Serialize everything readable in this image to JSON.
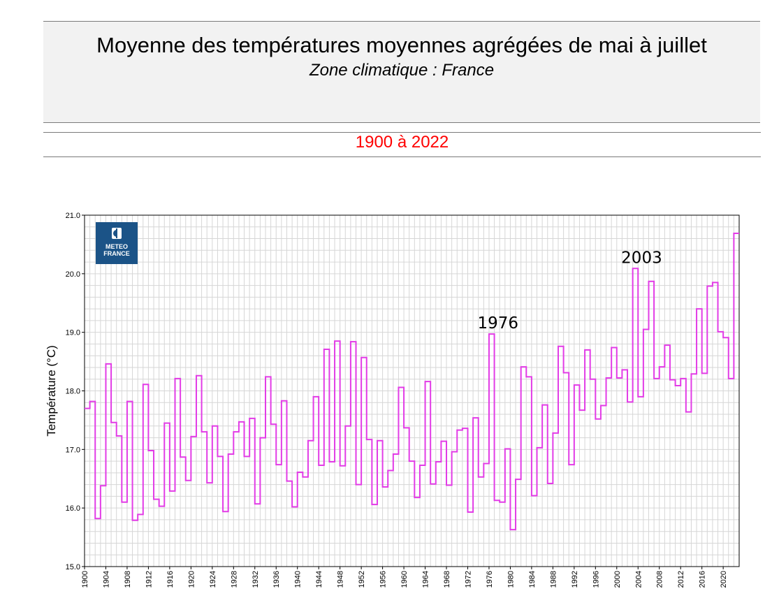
{
  "header": {
    "title": "Moyenne des températures moyennes agrégées de mai à juillet",
    "subtitle": "Zone climatique : France",
    "period": "1900 à 2022"
  },
  "logo": {
    "line1": "METEO",
    "line2": "FRANCE"
  },
  "colors": {
    "series": "#e23ce6",
    "period": "#ff0000",
    "logo_bg": "#1b5387"
  },
  "chart_data": {
    "type": "line",
    "step": true,
    "title": "",
    "xlabel": "",
    "ylabel": "Température (°C)",
    "xlim": [
      1900,
      2022
    ],
    "ylim": [
      15.0,
      21.0
    ],
    "grid": true,
    "yticks": [
      "15.0",
      "16.0",
      "17.0",
      "18.0",
      "19.0",
      "20.0",
      "21.0"
    ],
    "xticks": [
      "1900",
      "1904",
      "1908",
      "1912",
      "1916",
      "1920",
      "1924",
      "1928",
      "1932",
      "1936",
      "1940",
      "1944",
      "1948",
      "1952",
      "1956",
      "1960",
      "1964",
      "1968",
      "1972",
      "1976",
      "1980",
      "1984",
      "1988",
      "1992",
      "1996",
      "2000",
      "2004",
      "2008",
      "2012",
      "2016",
      "2020"
    ],
    "x": [
      1900,
      1901,
      1902,
      1903,
      1904,
      1905,
      1906,
      1907,
      1908,
      1909,
      1910,
      1911,
      1912,
      1913,
      1914,
      1915,
      1916,
      1917,
      1918,
      1919,
      1920,
      1921,
      1922,
      1923,
      1924,
      1925,
      1926,
      1927,
      1928,
      1929,
      1930,
      1931,
      1932,
      1933,
      1934,
      1935,
      1936,
      1937,
      1938,
      1939,
      1940,
      1941,
      1942,
      1943,
      1944,
      1945,
      1946,
      1947,
      1948,
      1949,
      1950,
      1951,
      1952,
      1953,
      1954,
      1955,
      1956,
      1957,
      1958,
      1959,
      1960,
      1961,
      1962,
      1963,
      1964,
      1965,
      1966,
      1967,
      1968,
      1969,
      1970,
      1971,
      1972,
      1973,
      1974,
      1975,
      1976,
      1977,
      1978,
      1979,
      1980,
      1981,
      1982,
      1983,
      1984,
      1985,
      1986,
      1987,
      1988,
      1989,
      1990,
      1991,
      1992,
      1993,
      1994,
      1995,
      1996,
      1997,
      1998,
      1999,
      2000,
      2001,
      2002,
      2003,
      2004,
      2005,
      2006,
      2007,
      2008,
      2009,
      2010,
      2011,
      2012,
      2013,
      2014,
      2015,
      2016,
      2017,
      2018,
      2019,
      2020,
      2021,
      2022
    ],
    "series": [
      {
        "values": [
          17.7,
          17.82,
          15.82,
          16.38,
          18.46,
          17.46,
          17.23,
          16.1,
          17.82,
          15.79,
          15.89,
          18.11,
          16.98,
          16.15,
          16.03,
          17.45,
          16.29,
          18.21,
          16.87,
          16.47,
          17.22,
          18.26,
          17.3,
          16.43,
          17.4,
          16.88,
          15.94,
          16.92,
          17.3,
          17.47,
          16.88,
          17.53,
          16.07,
          17.2,
          18.24,
          17.43,
          16.74,
          17.83,
          16.46,
          16.02,
          16.61,
          16.53,
          17.15,
          17.9,
          16.73,
          18.71,
          16.79,
          18.85,
          16.72,
          17.4,
          18.84,
          16.4,
          18.57,
          17.17,
          16.06,
          17.15,
          16.36,
          16.64,
          16.92,
          18.06,
          17.37,
          16.8,
          16.18,
          16.73,
          18.16,
          16.41,
          16.79,
          17.14,
          16.39,
          16.96,
          17.33,
          17.36,
          15.93,
          17.54,
          16.53,
          16.76,
          18.97,
          16.13,
          16.1,
          17.01,
          15.63,
          16.49,
          18.41,
          18.24,
          16.21,
          17.03,
          17.76,
          16.42,
          17.28,
          18.76,
          18.31,
          16.74,
          18.1,
          17.67,
          18.7,
          18.2,
          17.52,
          17.75,
          18.22,
          18.74,
          18.22,
          18.36,
          17.81,
          20.09,
          17.9,
          19.05,
          19.87,
          18.21,
          18.41,
          18.78,
          18.19,
          18.09,
          18.21,
          17.64,
          18.29,
          19.4,
          18.3,
          19.79,
          19.85,
          19.01,
          18.91,
          18.21,
          20.69
        ]
      }
    ],
    "annotations": [
      {
        "label": "1976",
        "x": 1976,
        "y": 18.97
      },
      {
        "label": "2003",
        "x": 2003,
        "y": 20.09
      }
    ]
  }
}
